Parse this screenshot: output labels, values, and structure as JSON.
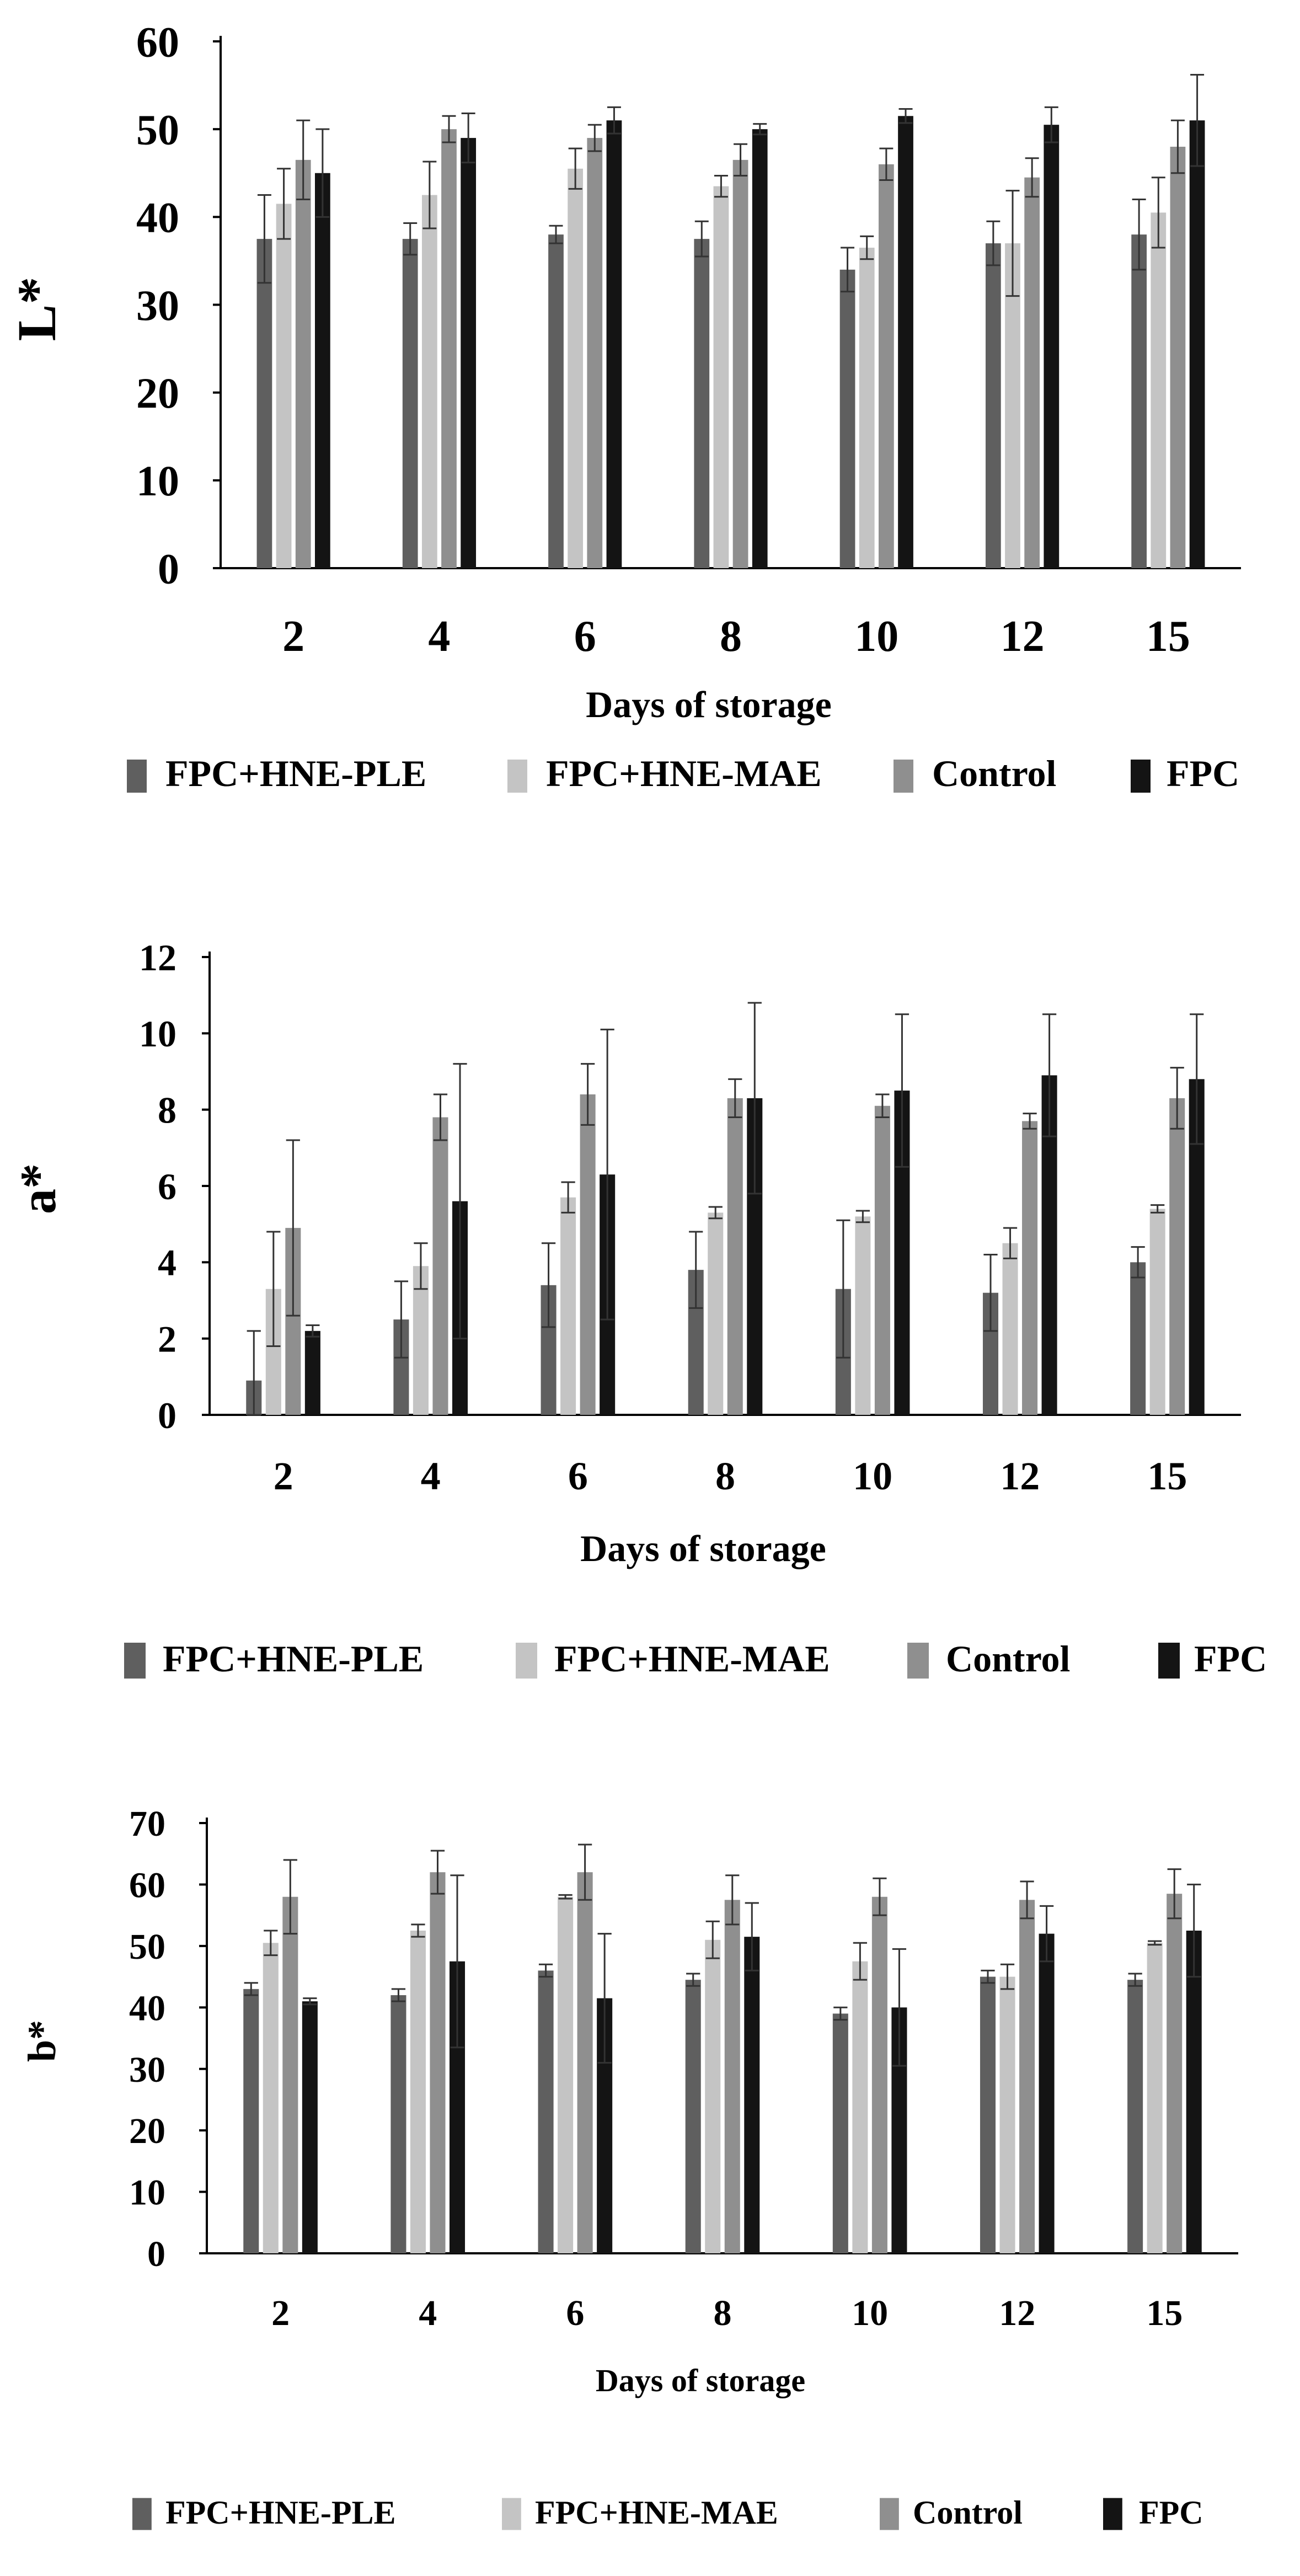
{
  "colors": {
    "FPC+HNE-PLE": "#5f5f5f",
    "FPC+HNE-MAE": "#c4c4c4",
    "Control": "#8f8f8f",
    "FPC": "#141414"
  },
  "chart_data": [
    {
      "type": "bar",
      "categories": [
        "2",
        "4",
        "6",
        "8",
        "10",
        "12",
        "15"
      ],
      "xlabel": "Days of storage",
      "ylabel": "L*",
      "ylim": [
        0,
        60
      ],
      "yticks": [
        "0",
        "10",
        "20",
        "30",
        "40",
        "50",
        "60"
      ],
      "series": [
        {
          "name": "FPC+HNE-PLE",
          "values": [
            37.5,
            37.5,
            38,
            37.5,
            34,
            37,
            38
          ],
          "errors": [
            5,
            1.8,
            1,
            2,
            2.5,
            2.5,
            4
          ]
        },
        {
          "name": "FPC+HNE-MAE",
          "values": [
            41.5,
            42.5,
            45.5,
            43.5,
            36.5,
            37,
            40.5
          ],
          "errors": [
            4,
            3.8,
            2.3,
            1.2,
            1.3,
            6,
            4
          ]
        },
        {
          "name": "Control",
          "values": [
            46.5,
            50,
            49,
            46.5,
            46,
            44.5,
            48
          ],
          "errors": [
            4.5,
            1.5,
            1.5,
            1.8,
            1.8,
            2.2,
            3
          ]
        },
        {
          "name": "FPC",
          "values": [
            45,
            49,
            51,
            50,
            51.5,
            50.5,
            51
          ],
          "errors": [
            5,
            2.8,
            1.5,
            0.6,
            0.8,
            2,
            5.2
          ]
        }
      ]
    },
    {
      "type": "bar",
      "categories": [
        "2",
        "4",
        "6",
        "8",
        "10",
        "12",
        "15"
      ],
      "xlabel": "Days of storage",
      "ylabel": "a*",
      "ylim": [
        0,
        12
      ],
      "yticks": [
        "0",
        "2",
        "4",
        "6",
        "8",
        "10",
        "12"
      ],
      "series": [
        {
          "name": "FPC+HNE-PLE",
          "values": [
            0.9,
            2.5,
            3.4,
            3.8,
            3.3,
            3.2,
            4
          ],
          "errors": [
            1.3,
            1,
            1.1,
            1,
            1.8,
            1,
            0.4
          ]
        },
        {
          "name": "FPC+HNE-MAE",
          "values": [
            3.3,
            3.9,
            5.7,
            5.3,
            5.2,
            4.5,
            5.4
          ],
          "errors": [
            1.5,
            0.6,
            0.4,
            0.15,
            0.15,
            0.4,
            0.1
          ]
        },
        {
          "name": "Control",
          "values": [
            4.9,
            7.8,
            8.4,
            8.3,
            8.1,
            7.7,
            8.3
          ],
          "errors": [
            2.3,
            0.6,
            0.8,
            0.5,
            0.3,
            0.2,
            0.8
          ]
        },
        {
          "name": "FPC",
          "values": [
            2.2,
            5.6,
            6.3,
            8.3,
            8.5,
            8.9,
            8.8
          ],
          "errors": [
            0.15,
            3.6,
            3.8,
            2.5,
            2,
            1.6,
            1.7
          ]
        }
      ]
    },
    {
      "type": "bar",
      "categories": [
        "2",
        "4",
        "6",
        "8",
        "10",
        "12",
        "15"
      ],
      "xlabel": "Days of storage",
      "ylabel": "b*",
      "ylim": [
        0,
        70
      ],
      "yticks": [
        "0",
        "10",
        "20",
        "30",
        "40",
        "50",
        "60",
        "70"
      ],
      "series": [
        {
          "name": "FPC+HNE-PLE",
          "values": [
            43,
            42,
            46,
            44.5,
            39,
            45,
            44.5
          ],
          "errors": [
            1,
            1,
            1,
            1,
            1,
            1,
            1
          ]
        },
        {
          "name": "FPC+HNE-MAE",
          "values": [
            50.5,
            52.5,
            58,
            51,
            47.5,
            45,
            50.5
          ],
          "errors": [
            2,
            1,
            0.3,
            3,
            3,
            2,
            0.3
          ]
        },
        {
          "name": "Control",
          "values": [
            58,
            62,
            62,
            57.5,
            58,
            57.5,
            58.5
          ],
          "errors": [
            6,
            3.5,
            4.5,
            4,
            3,
            3,
            4
          ]
        },
        {
          "name": "FPC",
          "values": [
            41,
            47.5,
            41.5,
            51.5,
            40,
            52,
            52.5
          ],
          "errors": [
            0.5,
            14,
            10.5,
            5.5,
            9.5,
            4.5,
            7.5
          ]
        }
      ]
    }
  ]
}
